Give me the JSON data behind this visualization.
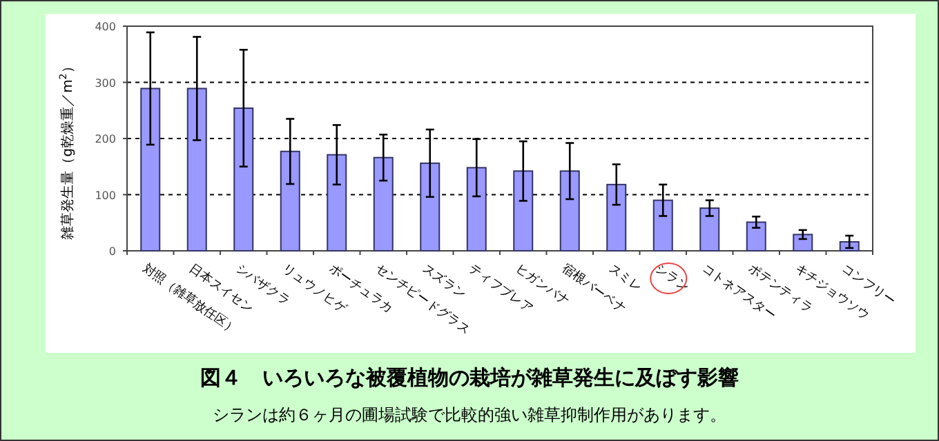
{
  "chart_data": {
    "type": "bar",
    "title": "図４　いろいろな被覆植物の栽培が雑草発生に及ぼす影響",
    "subtitle": "シランは約６ヶ月の圃場試験で比較的強い雑草抑制作用があります。",
    "ylabel": "雑草発生量（g乾燥重／m$^{2}$）",
    "categories": [
      "対照（雑草放任区）",
      "日本スイセン",
      "シバザクラ",
      "リュウノヒゲ",
      "ポーチュラカ",
      "センチピードグラス",
      "スズラン",
      "ティフブレア",
      "ヒガンバナ",
      "宿根バーベナ",
      "スミレ",
      "シラン",
      "コトネアスター",
      "ポテンティラ",
      "キチジョウソウ",
      "コンフリー"
    ],
    "values": [
      289,
      289,
      254,
      177,
      171,
      166,
      156,
      148,
      142,
      142,
      118,
      90,
      76,
      51,
      29,
      16
    ],
    "errors": [
      100,
      92,
      104,
      58,
      53,
      41,
      60,
      51,
      53,
      50,
      36,
      28,
      14,
      10,
      8,
      11
    ],
    "color": "#9999ff",
    "ylim": [
      0,
      400
    ],
    "yticks": [
      0,
      100,
      200,
      300,
      400
    ],
    "grid": "y"
  }
}
